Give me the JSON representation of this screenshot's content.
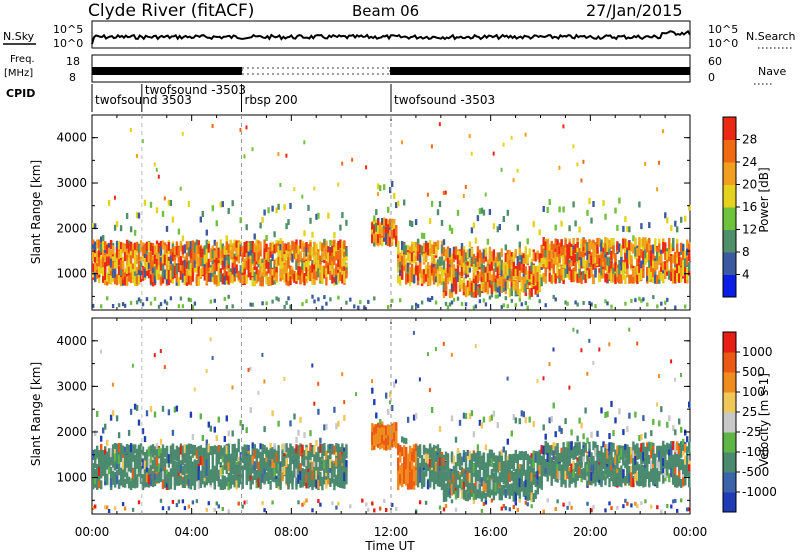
{
  "header": {
    "station": "Clyde River (fitACF)",
    "beam": "Beam 06",
    "date": "27/Jan/2015"
  },
  "nsky_panel": {
    "left_label": "N.Sky",
    "left_ticks": [
      "10^5",
      "10^0"
    ],
    "right_ticks": [
      "10^5",
      "10^0"
    ],
    "right_label": "N.Search"
  },
  "freq_panel": {
    "left_label_1": "Freq.",
    "left_label_2": "[MHz]",
    "left_ticks": [
      "18",
      "8"
    ],
    "right_ticks": [
      "60",
      "0"
    ],
    "right_label": "Nave",
    "cpid_label": "CPID"
  },
  "cpid_segments": [
    {
      "label": "twofsound 3503",
      "start_hour": 0.0
    },
    {
      "label": "twofsound -3503",
      "start_hour": 2.0
    },
    {
      "label": "rbsp 200",
      "start_hour": 6.0
    },
    {
      "label": "twofsound -3503",
      "start_hour": 12.0
    }
  ],
  "chart_data": [
    {
      "type": "heatmap",
      "quantity": "power",
      "ylabel": "Slant Range [km]",
      "ylim": [
        200,
        4500
      ],
      "xlim_hours": [
        0,
        24
      ],
      "y_ticks": [
        1000,
        2000,
        3000,
        4000
      ],
      "colorbar_label": "Power [dB]",
      "colorbar_ticks": [
        "4",
        "8",
        "12",
        "16",
        "20",
        "24",
        "28"
      ],
      "colorbar_colors": [
        "#0a1ee6",
        "#3c5aa0",
        "#4f8f6a",
        "#6fc23c",
        "#e6d21e",
        "#f0a01e",
        "#f06a14",
        "#eb2814"
      ]
    },
    {
      "type": "heatmap",
      "quantity": "velocity",
      "ylabel": "Slant Range [km]",
      "ylim": [
        200,
        4500
      ],
      "xlim_hours": [
        0,
        24
      ],
      "y_ticks": [
        1000,
        2000,
        3000,
        4000
      ],
      "colorbar_label": "Velocity [m s-1]",
      "colorbar_ticks": [
        "1000",
        "500",
        "100",
        "25",
        "-25",
        "-100",
        "-500",
        "-1000"
      ],
      "colorbar_colors": [
        "#1e3cb4",
        "#3c64aa",
        "#4b8a6e",
        "#5fb446",
        "#c8c8c8",
        "#f0c85a",
        "#f08c1e",
        "#eb5a14",
        "#e61e14"
      ]
    }
  ],
  "x_axis": {
    "ticks": [
      "00:00",
      "04:00",
      "08:00",
      "12:00",
      "16:00",
      "20:00",
      "00:00"
    ],
    "label": "Time UT"
  }
}
